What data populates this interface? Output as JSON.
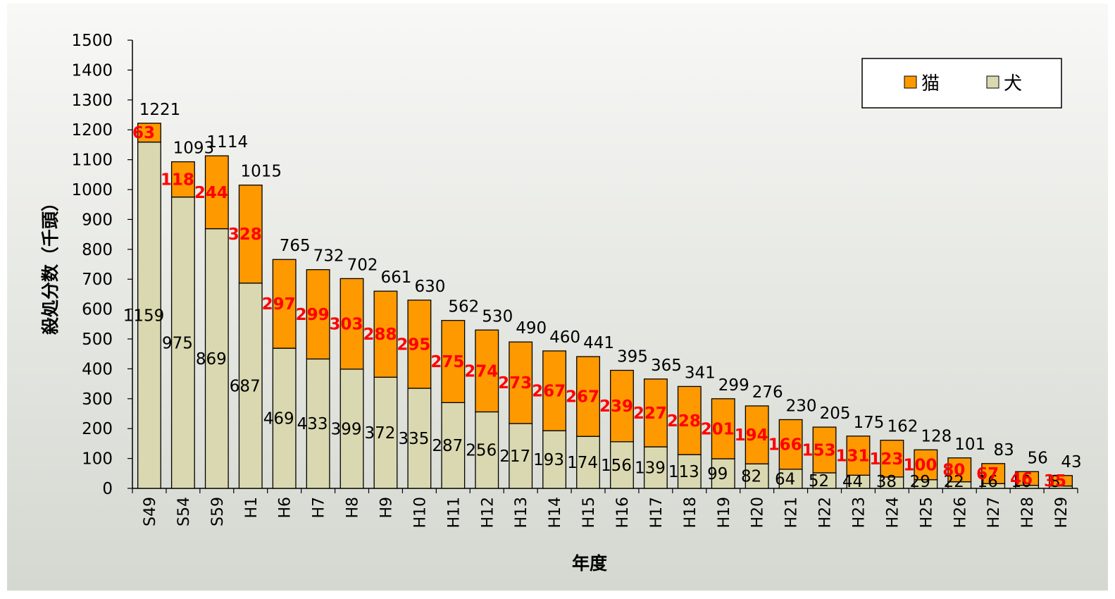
{
  "chart_data": {
    "type": "bar",
    "stacked": true,
    "xlabel": "年度",
    "ylabel": "殺処分数（千頭）",
    "ylim": [
      0,
      1500
    ],
    "yticks": [
      0,
      100,
      200,
      300,
      400,
      500,
      600,
      700,
      800,
      900,
      1000,
      1100,
      1200,
      1300,
      1400,
      1500
    ],
    "grid": false,
    "legend_position": "top-right",
    "categories": [
      "S49",
      "S54",
      "S59",
      "H1",
      "H6",
      "H7",
      "H8",
      "H9",
      "H10",
      "H11",
      "H12",
      "H13",
      "H14",
      "H15",
      "H16",
      "H17",
      "H18",
      "H19",
      "H20",
      "H21",
      "H22",
      "H23",
      "H24",
      "H25",
      "H26",
      "H27",
      "H28",
      "H29"
    ],
    "series": [
      {
        "name": "犬",
        "color": "#d9d8b0",
        "values": [
          1159,
          975,
          869,
          687,
          469,
          433,
          399,
          372,
          335,
          287,
          256,
          217,
          193,
          174,
          156,
          139,
          113,
          99,
          82,
          64,
          52,
          44,
          38,
          29,
          22,
          16,
          10,
          8
        ]
      },
      {
        "name": "猫",
        "color": "#ff9900",
        "values": [
          63,
          118,
          244,
          328,
          297,
          299,
          303,
          288,
          295,
          275,
          274,
          273,
          267,
          267,
          239,
          227,
          228,
          201,
          194,
          166,
          153,
          131,
          123,
          100,
          80,
          67,
          46,
          35
        ]
      }
    ],
    "totals": [
      1221,
      1093,
      1114,
      1015,
      765,
      732,
      702,
      661,
      630,
      562,
      530,
      490,
      460,
      441,
      395,
      365,
      341,
      299,
      276,
      230,
      205,
      175,
      162,
      128,
      101,
      83,
      56,
      43
    ],
    "label_colors": {
      "dog": "#000000",
      "cat": "#ff0000"
    },
    "legend_order": [
      "猫",
      "犬"
    ],
    "background_gradient": [
      "#f8f8f6",
      "#d4d8d0"
    ]
  }
}
